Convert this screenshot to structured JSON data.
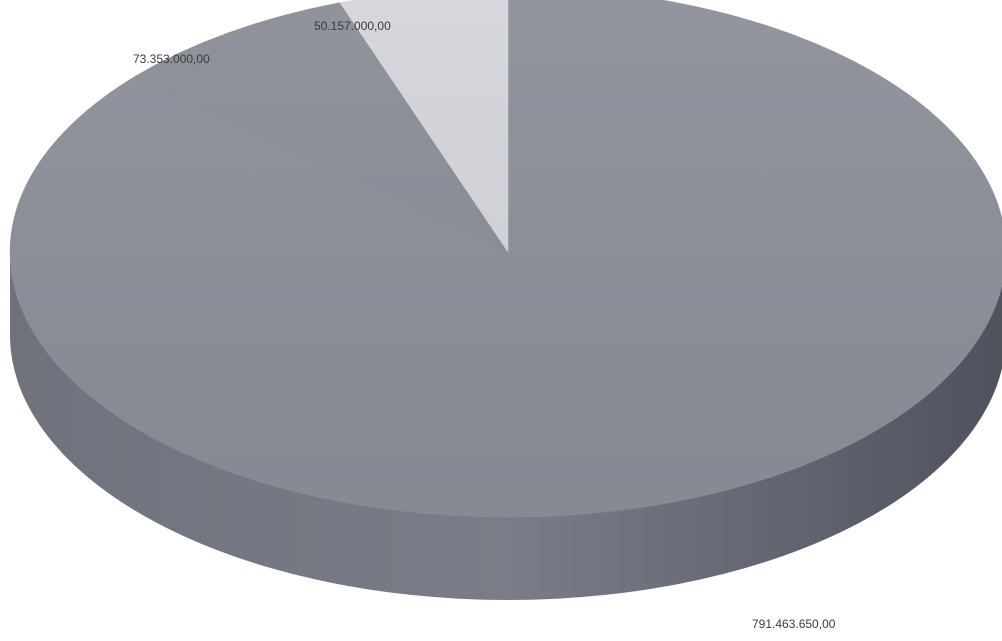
{
  "chart_data": {
    "type": "pie",
    "style": "3d",
    "title": "",
    "slices": [
      {
        "value": 791463650,
        "label": "791.463.650,00",
        "color": "#8c8f99"
      },
      {
        "value": 73353000,
        "label": "73.353.000,00",
        "color": "#8a8d97"
      },
      {
        "value": 50157000,
        "label": "50.157.000,00",
        "color": "#d4d5da"
      }
    ]
  }
}
